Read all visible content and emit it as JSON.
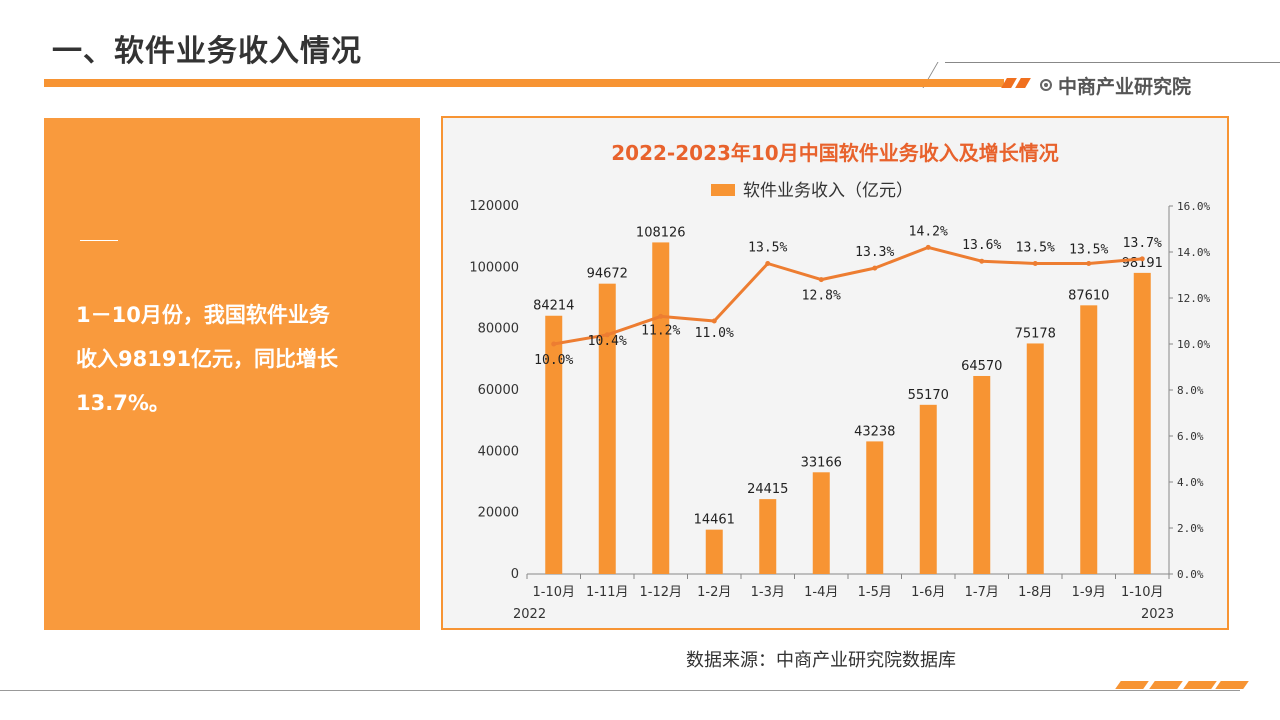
{
  "header": {
    "title": "一、软件业务收入情况",
    "brand": "中商产业研究院"
  },
  "summary": {
    "lines": [
      "1－10月份，我国软件业务",
      "收入98191亿元，同比增长",
      "13.7%。"
    ]
  },
  "footer": {
    "source": "数据来源：中商产业研究院数据库"
  },
  "colors": {
    "accent": "#f79433",
    "line": "#ed7d31",
    "panel": "#f99a3d"
  },
  "chart_data": {
    "type": "bar",
    "title": "2022-2023年10月中国软件业务收入及增长情况",
    "legend": "软件业务收入（亿元）",
    "legend_position": "top-center",
    "categories": [
      "1-10月",
      "1-11月",
      "1-12月",
      "1-2月",
      "1-3月",
      "1-4月",
      "1-5月",
      "1-6月",
      "1-7月",
      "1-8月",
      "1-9月",
      "1-10月"
    ],
    "year_labels": {
      "start": "2022",
      "end": "2023"
    },
    "series": [
      {
        "name": "软件业务收入（亿元）",
        "axis": "left",
        "type": "bar",
        "values": [
          84214,
          94672,
          108126,
          14461,
          24415,
          33166,
          43238,
          55170,
          64570,
          75178,
          87610,
          98191
        ]
      },
      {
        "axis": "right",
        "type": "line",
        "values": [
          10.0,
          10.4,
          11.2,
          11.0,
          13.5,
          12.8,
          13.3,
          14.2,
          13.6,
          13.5,
          13.5,
          13.7
        ],
        "labels": [
          "10.0%",
          "10.4%",
          "11.2%",
          "11.0%",
          "13.5%",
          "12.8%",
          "13.3%",
          "14.2%",
          "13.6%",
          "13.5%",
          "13.5%",
          "13.7%"
        ]
      }
    ],
    "left_axis": {
      "ylim": [
        0,
        120000
      ],
      "ticks": [
        "0",
        "20000",
        "40000",
        "60000",
        "80000",
        "100000",
        "120000"
      ]
    },
    "right_axis": {
      "ylim": [
        0,
        16
      ],
      "ticks": [
        "0.0%",
        "2.0%",
        "4.0%",
        "6.0%",
        "8.0%",
        "10.0%",
        "12.0%",
        "14.0%",
        "16.0%"
      ]
    },
    "grid": false
  }
}
